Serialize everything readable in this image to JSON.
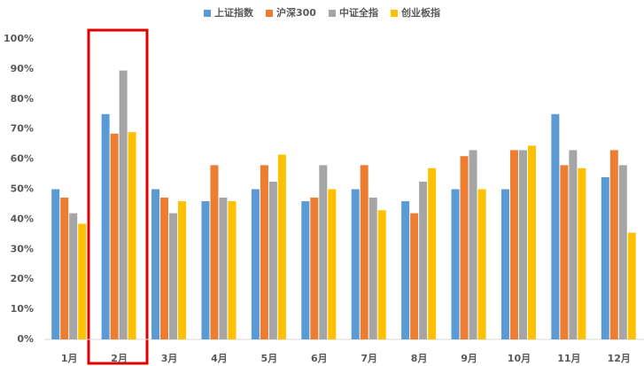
{
  "chart_data": {
    "type": "bar",
    "categories": [
      "1月",
      "2月",
      "3月",
      "4月",
      "5月",
      "6月",
      "7月",
      "8月",
      "9月",
      "10月",
      "11月",
      "12月"
    ],
    "series": [
      {
        "name": "上证指数",
        "color": "#5b9bd5",
        "values": [
          50,
          75,
          50,
          46,
          50,
          46,
          50,
          46,
          50,
          50,
          75,
          54
        ]
      },
      {
        "name": "沪深300",
        "color": "#ed7d31",
        "values": [
          47.2,
          68.5,
          47.2,
          58,
          58,
          47.2,
          58,
          42,
          61,
          63,
          58,
          63
        ]
      },
      {
        "name": "中证全指",
        "color": "#a5a5a5",
        "values": [
          42,
          89.5,
          42,
          47.2,
          52.5,
          58,
          47.2,
          52.5,
          63,
          63,
          63,
          58
        ]
      },
      {
        "name": "创业板指",
        "color": "#ffc000",
        "values": [
          38.5,
          69,
          46,
          46,
          61.5,
          50,
          43,
          57,
          50,
          64.5,
          57,
          35.5
        ]
      }
    ],
    "ylim": [
      0,
      100
    ],
    "yticks": [
      {
        "value": 0,
        "label": "0%"
      },
      {
        "value": 10,
        "label": "10%"
      },
      {
        "value": 20,
        "label": "20%"
      },
      {
        "value": 30,
        "label": "30%"
      },
      {
        "value": 40,
        "label": "40%"
      },
      {
        "value": 50,
        "label": "50%"
      },
      {
        "value": 60,
        "label": "60%"
      },
      {
        "value": 70,
        "label": "70%"
      },
      {
        "value": 80,
        "label": "80%"
      },
      {
        "value": 90,
        "label": "90%"
      },
      {
        "value": 100,
        "label": "100%"
      }
    ],
    "grid": false
  }
}
